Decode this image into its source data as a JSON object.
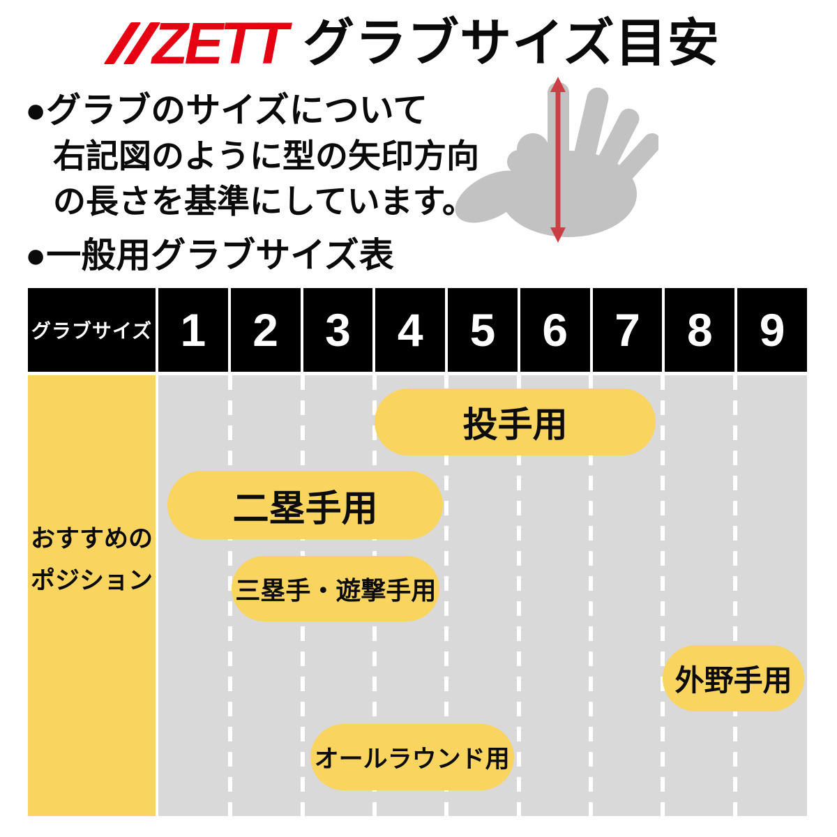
{
  "header": {
    "brand": "ZETT",
    "title": "グラブサイズ目安",
    "brand_color": "#e60012"
  },
  "about": {
    "line1": "●グラブのサイズについて",
    "line2": "右記図のように型の矢印方向",
    "line3": "の長さを基準にしています。"
  },
  "hand_diagram": {
    "hand_icon": "open-hand-icon",
    "arrow_icon": "double-headed-measure-arrow-icon",
    "hand_color": "#c2c2c2",
    "arrow_color": "#cb3e43"
  },
  "section": {
    "heading": "●一般用グラブサイズ表"
  },
  "size_table": {
    "header_label": "グラブサイズ",
    "sizes": [
      "1",
      "2",
      "3",
      "4",
      "5",
      "6",
      "7",
      "8",
      "9"
    ],
    "row_label_line1": "おすすめの",
    "row_label_line2": "ポジション",
    "positions": [
      {
        "label": "投手用",
        "size_start": 4,
        "size_end": 7
      },
      {
        "label": "二塁手用",
        "size_start": 1,
        "size_end": 4
      },
      {
        "label": "三塁手・遊撃手用",
        "size_start": 2,
        "size_end": 4
      },
      {
        "label": "外野手用",
        "size_start": 8,
        "size_end": 9
      },
      {
        "label": "オールラウンド用",
        "size_start": 3,
        "size_end": 5
      }
    ],
    "colors": {
      "header_bg": "#000000",
      "header_text": "#ffffff",
      "label_col_bg": "#f9d55f",
      "body_bg": "#d9d9d9",
      "pill_bg": "#f9d55f",
      "pill_text": "#0c0c0c"
    }
  },
  "chart_data": {
    "type": "table",
    "title": "一般用グラブサイズ表",
    "categories": [
      1,
      2,
      3,
      4,
      5,
      6,
      7,
      8,
      9
    ],
    "x_axis_label": "グラブサイズ",
    "row_label": "おすすめのポジション",
    "series": [
      {
        "name": "投手用",
        "range": [
          4,
          7
        ]
      },
      {
        "name": "二塁手用",
        "range": [
          1,
          4
        ]
      },
      {
        "name": "三塁手・遊撃手用",
        "range": [
          2,
          4
        ]
      },
      {
        "name": "外野手用",
        "range": [
          8,
          9
        ]
      },
      {
        "name": "オールラウンド用",
        "range": [
          3,
          5
        ]
      }
    ],
    "legend_position": "none",
    "grid": "dashed-vertical-separators"
  }
}
